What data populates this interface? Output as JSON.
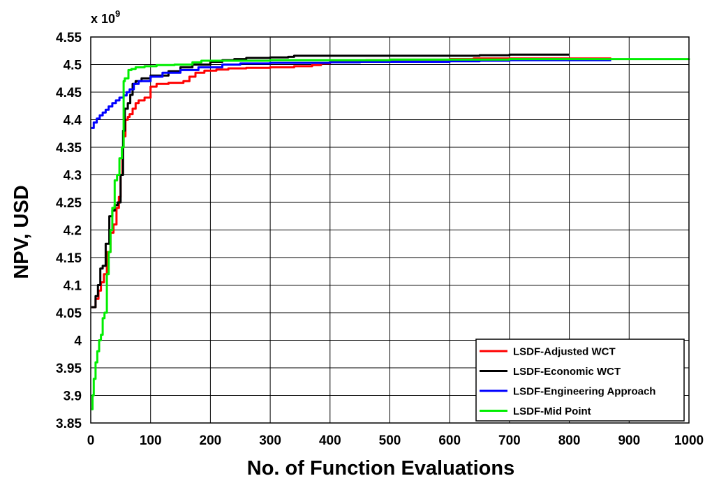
{
  "chart_data": {
    "type": "line",
    "xlabel": "No. of Function Evaluations",
    "ylabel": "NPV, USD",
    "y_exponent_label": "x 10",
    "y_exponent_power": "9",
    "xlim": [
      0,
      1000
    ],
    "ylim": [
      3.85,
      4.55
    ],
    "x_ticks": [
      0,
      100,
      200,
      300,
      400,
      500,
      600,
      700,
      800,
      900,
      1000
    ],
    "x_tick_labels": [
      "0",
      "100",
      "200",
      "300",
      "400",
      "500",
      "600",
      "700",
      "800",
      "900",
      "1000"
    ],
    "y_ticks": [
      3.85,
      3.9,
      3.95,
      4.0,
      4.05,
      4.1,
      4.15,
      4.2,
      4.25,
      4.3,
      4.35,
      4.4,
      4.45,
      4.5,
      4.55
    ],
    "y_tick_labels": [
      "3.85",
      "3.9",
      "3.95",
      "4",
      "4.05",
      "4.1",
      "4.15",
      "4.2",
      "4.25",
      "4.3",
      "4.35",
      "4.4",
      "4.45",
      "4.5",
      "4.55"
    ],
    "grid": true,
    "legend_position": "bottom-right",
    "series": [
      {
        "name": "LSDF-Adjusted WCT",
        "color": "#ff0000",
        "step": true,
        "x": [
          1,
          8,
          13,
          17,
          22,
          27,
          33,
          38,
          43,
          47,
          50,
          53,
          55,
          58,
          62,
          65,
          70,
          75,
          80,
          90,
          100,
          110,
          130,
          155,
          165,
          175,
          190,
          210,
          230,
          260,
          300,
          340,
          370,
          385,
          400,
          460,
          500,
          600,
          640,
          700,
          870
        ],
        "y": [
          4.06,
          4.075,
          4.09,
          4.105,
          4.12,
          4.16,
          4.195,
          4.21,
          4.24,
          4.26,
          4.3,
          4.35,
          4.37,
          4.4,
          4.405,
          4.41,
          4.42,
          4.43,
          4.435,
          4.44,
          4.46,
          4.465,
          4.467,
          4.47,
          4.478,
          4.485,
          4.489,
          4.491,
          4.493,
          4.494,
          4.495,
          4.497,
          4.499,
          4.502,
          4.506,
          4.508,
          4.509,
          4.51,
          4.511,
          4.511,
          4.511
        ]
      },
      {
        "name": "LSDF-Economic WCT",
        "color": "#000000",
        "step": true,
        "x": [
          1,
          8,
          12,
          16,
          20,
          25,
          31,
          36,
          40,
          45,
          50,
          54,
          57,
          62,
          66,
          70,
          75,
          85,
          100,
          130,
          150,
          170,
          200,
          220,
          240,
          260,
          300,
          330,
          340,
          400,
          500,
          600,
          650,
          700,
          800
        ],
        "y": [
          4.06,
          4.08,
          4.1,
          4.13,
          4.135,
          4.175,
          4.225,
          4.235,
          4.245,
          4.25,
          4.3,
          4.38,
          4.42,
          4.43,
          4.445,
          4.465,
          4.47,
          4.475,
          4.48,
          4.488,
          4.495,
          4.5,
          4.505,
          4.508,
          4.51,
          4.512,
          4.513,
          4.514,
          4.516,
          4.516,
          4.516,
          4.516,
          4.517,
          4.518,
          4.518
        ]
      },
      {
        "name": "LSDF-Engineering Approach",
        "color": "#0000ff",
        "step": true,
        "x": [
          1,
          5,
          10,
          15,
          20,
          25,
          30,
          36,
          42,
          48,
          55,
          60,
          65,
          72,
          80,
          100,
          120,
          150,
          180,
          220,
          250,
          300,
          400,
          450,
          500,
          600,
          650,
          700,
          800,
          870
        ],
        "y": [
          4.385,
          4.395,
          4.402,
          4.408,
          4.413,
          4.418,
          4.424,
          4.43,
          4.435,
          4.44,
          4.444,
          4.45,
          4.455,
          4.465,
          4.47,
          4.478,
          4.485,
          4.49,
          4.495,
          4.5,
          4.502,
          4.503,
          4.504,
          4.505,
          4.505,
          4.506,
          4.507,
          4.508,
          4.508,
          4.508
        ]
      },
      {
        "name": "LSDF-Mid Point",
        "color": "#00ee00",
        "step": true,
        "x": [
          1,
          3,
          5,
          8,
          11,
          14,
          17,
          20,
          23,
          27,
          30,
          33,
          36,
          40,
          44,
          48,
          52,
          55,
          57,
          63,
          68,
          75,
          90,
          110,
          140,
          170,
          185,
          200,
          300,
          500,
          700,
          1000
        ],
        "y": [
          3.875,
          3.9,
          3.93,
          3.96,
          3.98,
          4.0,
          4.01,
          4.04,
          4.05,
          4.12,
          4.16,
          4.2,
          4.24,
          4.29,
          4.3,
          4.33,
          4.35,
          4.47,
          4.475,
          4.49,
          4.492,
          4.495,
          4.497,
          4.499,
          4.5,
          4.504,
          4.507,
          4.507,
          4.508,
          4.509,
          4.51,
          4.511
        ]
      }
    ]
  }
}
